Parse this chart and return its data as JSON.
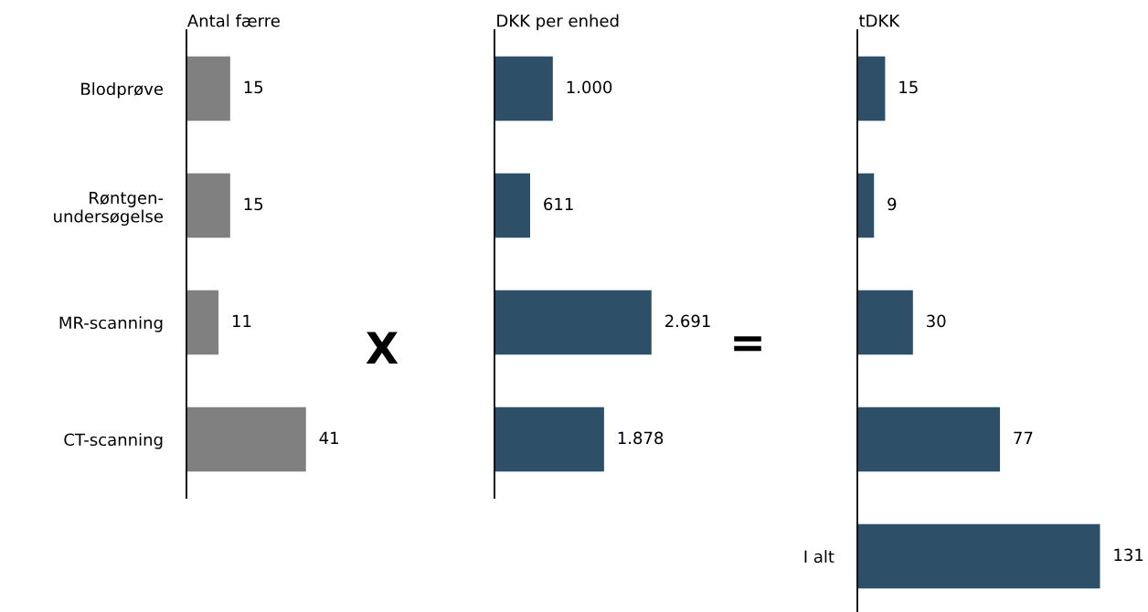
{
  "chart_data": [
    {
      "type": "bar",
      "orientation": "horizontal",
      "title": "Antal færre",
      "categories": [
        "Blodprøve",
        "Røntgen-\nundersøgelse",
        "MR-scanning",
        "CT-scanning"
      ],
      "values": [
        15,
        15,
        11,
        41
      ],
      "color": "#808080",
      "data_labels": true,
      "grid": false,
      "legend": false,
      "annotations": [
        "X"
      ]
    },
    {
      "type": "bar",
      "orientation": "horizontal",
      "title": "DKK per enhed",
      "categories": [
        null,
        null,
        null,
        null
      ],
      "values": [
        1000,
        611,
        2691,
        1878
      ],
      "value_labels": [
        "1.000",
        "611",
        "2.691",
        "1.878"
      ],
      "color": "#2d5068",
      "grid": false,
      "legend": false,
      "annotations": [
        "="
      ]
    },
    {
      "type": "bar",
      "orientation": "horizontal",
      "title": "tDKK",
      "categories": [
        null,
        null,
        null,
        null,
        "I alt"
      ],
      "values": [
        15,
        9,
        30,
        77,
        131
      ],
      "color": "#2d5068",
      "data_labels": true,
      "grid": false,
      "legend": false
    }
  ]
}
